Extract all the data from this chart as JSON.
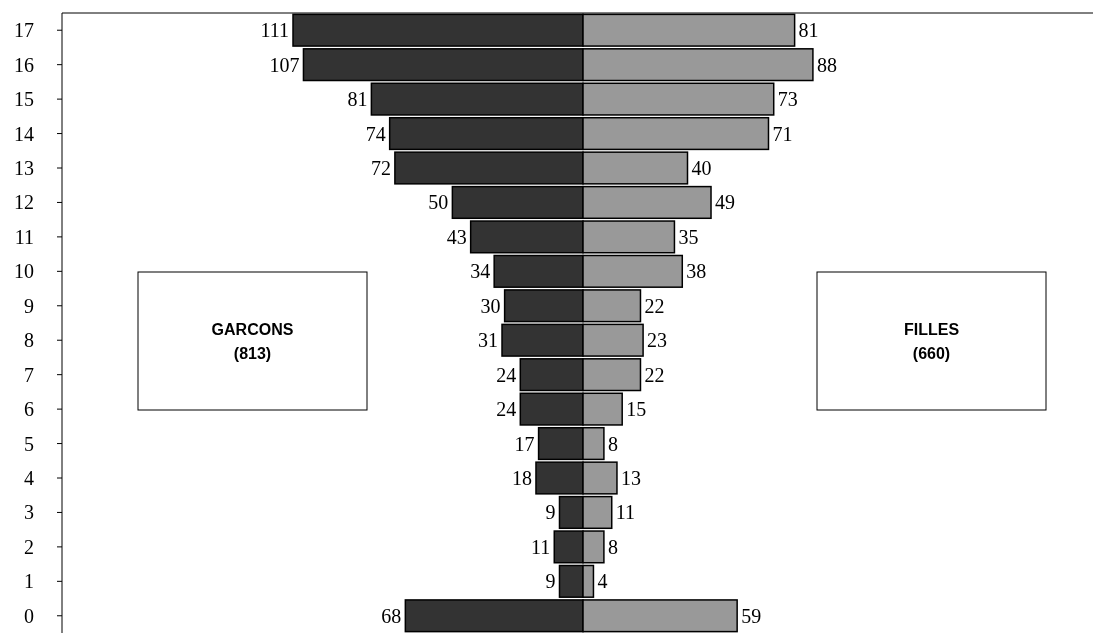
{
  "chart_data": [
    {
      "type": "bar",
      "orientation": "horizontal",
      "data_labels": true,
      "xlim": [
        111,
        0
      ],
      "categories": [
        "17",
        "16",
        "15",
        "14",
        "13",
        "12",
        "11",
        "10",
        "9",
        "8",
        "7",
        "6",
        "5",
        "4",
        "3",
        "2",
        "1",
        "0"
      ],
      "series": [
        {
          "color": "#333333",
          "values": [
            111,
            107,
            81,
            74,
            72,
            50,
            43,
            34,
            30,
            31,
            24,
            24,
            17,
            18,
            9,
            11,
            9,
            68
          ]
        }
      ],
      "annotations": [
        "GARCONS (813)"
      ]
    },
    {
      "type": "bar",
      "orientation": "horizontal",
      "data_labels": true,
      "tick_labels": false,
      "categories": [
        "17",
        "16",
        "15",
        "14",
        "13",
        "12",
        "11",
        "10",
        "9",
        "8",
        "7",
        "6",
        "5",
        "4",
        "3",
        "2",
        "1",
        "0"
      ],
      "series": [
        {
          "color": "#999999",
          "values": [
            81,
            88,
            73,
            71,
            40,
            49,
            35,
            38,
            22,
            23,
            22,
            15,
            8,
            13,
            11,
            8,
            4,
            59
          ]
        }
      ],
      "annotations": [
        "FILLES (660)"
      ]
    }
  ]
}
